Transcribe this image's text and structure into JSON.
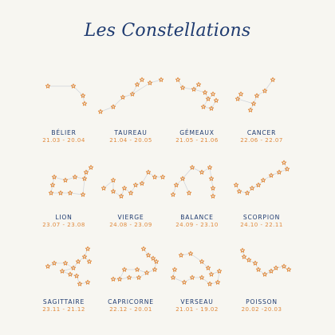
{
  "title": "Les Constellations",
  "colors": {
    "title": "#1f3b70",
    "label": "#1f3b70",
    "star": "#e08a3d",
    "line": "#cfd3da",
    "background": "#f7f6f1"
  },
  "signs": [
    {
      "name": "BÉLIER",
      "dates": "21.03 - 20.04"
    },
    {
      "name": "TAUREAU",
      "dates": "21.04 - 20.05"
    },
    {
      "name": "GÉMEAUX",
      "dates": "21.05 - 21.06"
    },
    {
      "name": "CANCER",
      "dates": "22.06 - 22.07"
    },
    {
      "name": "LION",
      "dates": "23.07 - 23.08"
    },
    {
      "name": "VIERGE",
      "dates": "24.08 - 23.09"
    },
    {
      "name": "BALANCE",
      "dates": "24.09 - 23.10"
    },
    {
      "name": "SCORPION",
      "dates": "24.10 - 22.11"
    },
    {
      "name": "SAGITTAIRE",
      "dates": "23.11 - 21.12"
    },
    {
      "name": "CAPRICORNE",
      "dates": "22.12 - 20.01"
    },
    {
      "name": "VERSEAU",
      "dates": "21.01 - 19.02"
    },
    {
      "name": "POISSON",
      "dates": "20.02 -20.03"
    }
  ]
}
